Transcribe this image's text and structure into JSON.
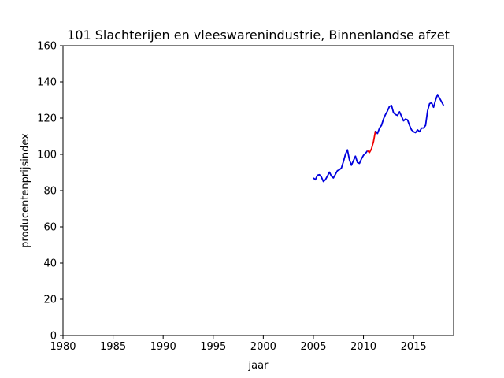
{
  "chart_data": {
    "type": "line",
    "title": "101 Slachterijen en vleeswarenindustrie, Binnenlandse afzet",
    "xlabel": "jaar",
    "ylabel": "producentenprijsindex",
    "xlim": [
      1980,
      2019
    ],
    "ylim": [
      0,
      160
    ],
    "xticks": [
      1980,
      1985,
      1990,
      1995,
      2000,
      2005,
      2010,
      2015
    ],
    "yticks": [
      0,
      20,
      40,
      60,
      80,
      100,
      120,
      140,
      160
    ],
    "grid": false,
    "legend": "none",
    "series": [
      {
        "color": "#0000dd",
        "points": [
          [
            2005.0,
            87.0
          ],
          [
            2005.2,
            86.0
          ],
          [
            2005.4,
            88.5
          ],
          [
            2005.6,
            88.8
          ],
          [
            2005.8,
            87.5
          ],
          [
            2006.0,
            85.0
          ],
          [
            2006.2,
            86.0
          ],
          [
            2006.4,
            88.0
          ],
          [
            2006.6,
            90.2
          ],
          [
            2006.8,
            88.0
          ],
          [
            2007.0,
            87.0
          ],
          [
            2007.2,
            89.0
          ],
          [
            2007.4,
            91.0
          ],
          [
            2007.6,
            91.5
          ],
          [
            2007.8,
            92.5
          ],
          [
            2008.0,
            96.0
          ],
          [
            2008.2,
            100.0
          ],
          [
            2008.4,
            102.5
          ],
          [
            2008.6,
            97.0
          ],
          [
            2008.8,
            94.0
          ],
          [
            2009.0,
            96.5
          ],
          [
            2009.2,
            99.0
          ],
          [
            2009.4,
            95.5
          ],
          [
            2009.6,
            95.0
          ],
          [
            2009.8,
            97.5
          ],
          [
            2010.0,
            99.5
          ],
          [
            2010.2,
            100.5
          ],
          [
            2010.4,
            102.0
          ]
        ]
      },
      {
        "color": "#ee0000",
        "points": [
          [
            2010.4,
            102.0
          ],
          [
            2010.6,
            101.0
          ],
          [
            2010.8,
            103.0
          ],
          [
            2011.0,
            107.0
          ],
          [
            2011.2,
            113.0
          ]
        ]
      },
      {
        "color": "#0000dd",
        "points": [
          [
            2011.2,
            113.0
          ],
          [
            2011.4,
            111.5
          ],
          [
            2011.6,
            114.5
          ],
          [
            2011.8,
            116.0
          ],
          [
            2012.0,
            119.5
          ],
          [
            2012.2,
            122.0
          ],
          [
            2012.4,
            124.0
          ],
          [
            2012.6,
            126.5
          ],
          [
            2012.8,
            127.0
          ],
          [
            2013.0,
            123.0
          ],
          [
            2013.2,
            122.0
          ],
          [
            2013.4,
            121.5
          ],
          [
            2013.6,
            123.5
          ],
          [
            2013.8,
            121.0
          ],
          [
            2014.0,
            118.5
          ],
          [
            2014.2,
            119.5
          ],
          [
            2014.4,
            119.0
          ],
          [
            2014.6,
            116.0
          ],
          [
            2014.8,
            113.5
          ],
          [
            2015.0,
            112.5
          ],
          [
            2015.2,
            112.0
          ],
          [
            2015.4,
            113.5
          ],
          [
            2015.6,
            112.5
          ],
          [
            2015.8,
            114.5
          ],
          [
            2016.0,
            114.5
          ],
          [
            2016.2,
            116.0
          ],
          [
            2016.4,
            124.0
          ],
          [
            2016.6,
            128.0
          ],
          [
            2016.8,
            128.5
          ],
          [
            2017.0,
            126.0
          ],
          [
            2017.2,
            130.0
          ],
          [
            2017.4,
            133.0
          ],
          [
            2017.6,
            131.0
          ],
          [
            2017.8,
            129.0
          ],
          [
            2018.0,
            127.0
          ]
        ]
      }
    ]
  }
}
